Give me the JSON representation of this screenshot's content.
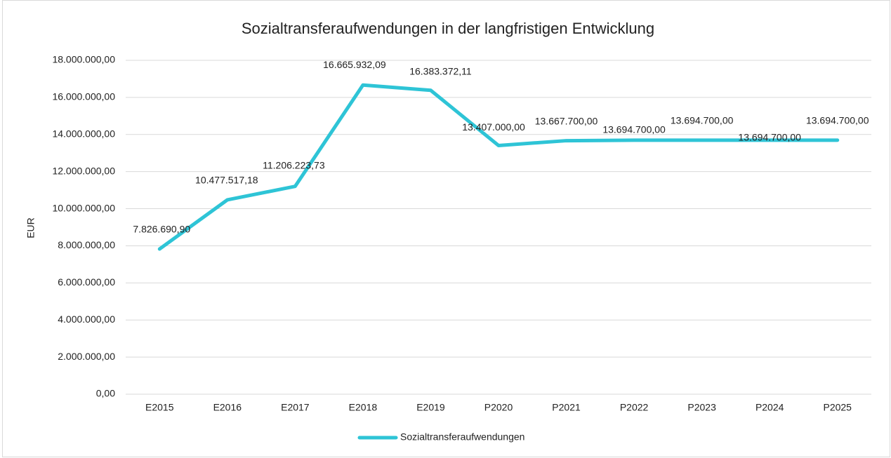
{
  "chart_data": {
    "type": "line",
    "title": "Sozialtransferaufwendungen in der langfristigen Entwicklung",
    "y_label": "EUR",
    "categories": [
      "E2015",
      "E2016",
      "E2017",
      "E2018",
      "E2019",
      "P2020",
      "P2021",
      "P2022",
      "P2023",
      "P2024",
      "P2025"
    ],
    "series": [
      {
        "name": "Sozialtransferaufwendungen",
        "color": "#2ec4d6",
        "values": [
          7826690.9,
          10477517.18,
          11206223.73,
          16665932.09,
          16383372.11,
          13407000.0,
          13667700.0,
          13694700.0,
          13694700.0,
          13694700.0,
          13694700.0
        ],
        "value_labels": [
          "7.826.690,90",
          "10.477.517,18",
          "11.206.223,73",
          "16.665.932,09",
          "16.383.372,11",
          "13.407.000,00",
          "13.667.700,00",
          "13.694.700,00",
          "13.694.700,00",
          "13.694.700,00",
          "13.694.700,00"
        ]
      }
    ],
    "ylim": [
      0,
      18000000
    ],
    "yticks": [
      {
        "value": 0,
        "label": "0,00"
      },
      {
        "value": 2000000,
        "label": "2.000.000,00"
      },
      {
        "value": 4000000,
        "label": "4.000.000,00"
      },
      {
        "value": 6000000,
        "label": "6.000.000,00"
      },
      {
        "value": 8000000,
        "label": "8.000.000,00"
      },
      {
        "value": 10000000,
        "label": "10.000.000,00"
      },
      {
        "value": 12000000,
        "label": "12.000.000,00"
      },
      {
        "value": 14000000,
        "label": "14.000.000,00"
      },
      {
        "value": 16000000,
        "label": "16.000.000,00"
      },
      {
        "value": 18000000,
        "label": "18.000.000,00"
      }
    ],
    "grid": true,
    "legend": "bottom"
  }
}
